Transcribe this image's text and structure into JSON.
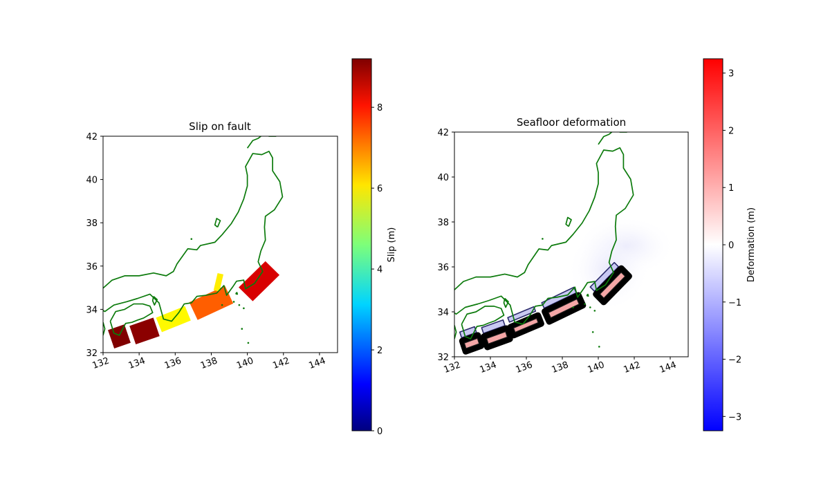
{
  "colors": {
    "coastline": "#0b7a0b",
    "frame": "#000000",
    "contour_line": "#000000",
    "contour_neg_line": "#2a2a6a"
  },
  "chart_data": [
    {
      "type": "heatmap",
      "title": "Slip on fault",
      "xlim": [
        132,
        145
      ],
      "ylim": [
        32,
        42
      ],
      "xticks": [
        "132",
        "134",
        "136",
        "138",
        "140",
        "142",
        "144"
      ],
      "yticks": [
        "32",
        "34",
        "36",
        "38",
        "40",
        "42"
      ],
      "colorbar": {
        "label": "Slip (m)",
        "colormap": "jet",
        "range": [
          0,
          9.2
        ],
        "ticks": [
          "0",
          "2",
          "4",
          "6",
          "8"
        ]
      },
      "subfaults": [
        {
          "center": [
            132.9,
            32.75
          ],
          "length_km": 90,
          "width_km": 100,
          "strike_deg": 251,
          "slip": 9.2
        },
        {
          "center": [
            134.3,
            33.0
          ],
          "length_km": 130,
          "width_km": 100,
          "strike_deg": 251,
          "slip": 9.1
        },
        {
          "center": [
            135.9,
            33.55
          ],
          "length_km": 160,
          "width_km": 80,
          "strike_deg": 248,
          "slip": 5.8
        },
        {
          "center": [
            138.0,
            34.3
          ],
          "length_km": 200,
          "width_km": 100,
          "strike_deg": 245,
          "slip": 7.2
        },
        {
          "center": [
            138.4,
            35.25
          ],
          "length_km": 90,
          "width_km": 30,
          "strike_deg": 193,
          "slip": 5.9
        },
        {
          "center": [
            140.65,
            35.3
          ],
          "length_km": 190,
          "width_km": 100,
          "strike_deg": 225,
          "slip": 8.4
        }
      ]
    },
    {
      "type": "heatmap",
      "title": "Seafloor deformation",
      "xlim": [
        132,
        145
      ],
      "ylim": [
        32,
        42
      ],
      "xticks": [
        "132",
        "134",
        "136",
        "138",
        "140",
        "142",
        "144"
      ],
      "yticks": [
        "32",
        "34",
        "36",
        "38",
        "40",
        "42"
      ],
      "colorbar": {
        "label": "Deformation (m)",
        "colormap": "bwr",
        "range": [
          -3.25,
          3.25
        ],
        "ticks": [
          "−3",
          "−2",
          "−1",
          "0",
          "1",
          "2",
          "3"
        ]
      }
    }
  ]
}
